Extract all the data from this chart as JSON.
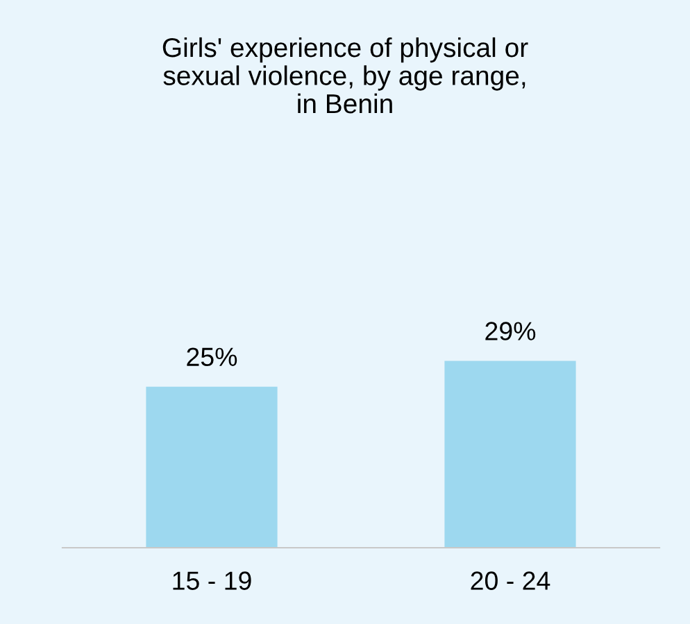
{
  "chart_data": {
    "type": "bar",
    "title": "Girls' experience of physical or\nsexual violence, by age range,\nin Benin",
    "categories": [
      "15 - 19",
      "20 - 24"
    ],
    "values": [
      25,
      29
    ],
    "value_labels": [
      "25%",
      "29%"
    ],
    "color": "#9dd8ef",
    "grid": false,
    "legend": false
  }
}
